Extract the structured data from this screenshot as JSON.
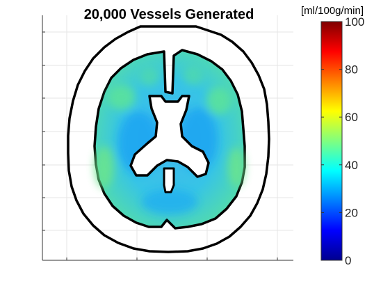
{
  "chart_data": {
    "type": "heatmap",
    "title": "20,000 Vessels Generated",
    "xlabel": "",
    "ylabel": "",
    "grid": true,
    "colorbar": {
      "label": "[ml/100g/min]",
      "range": [
        0,
        100
      ],
      "ticks": [
        0,
        20,
        40,
        60,
        80,
        100
      ],
      "colormap": "jet",
      "placement": "right"
    },
    "value_summary": {
      "white_matter_typical": 30,
      "gray_matter_typical": 43,
      "overall_range": [
        25,
        48
      ]
    }
  },
  "colors": {
    "outline": "#000000",
    "background": "#ffffff"
  }
}
